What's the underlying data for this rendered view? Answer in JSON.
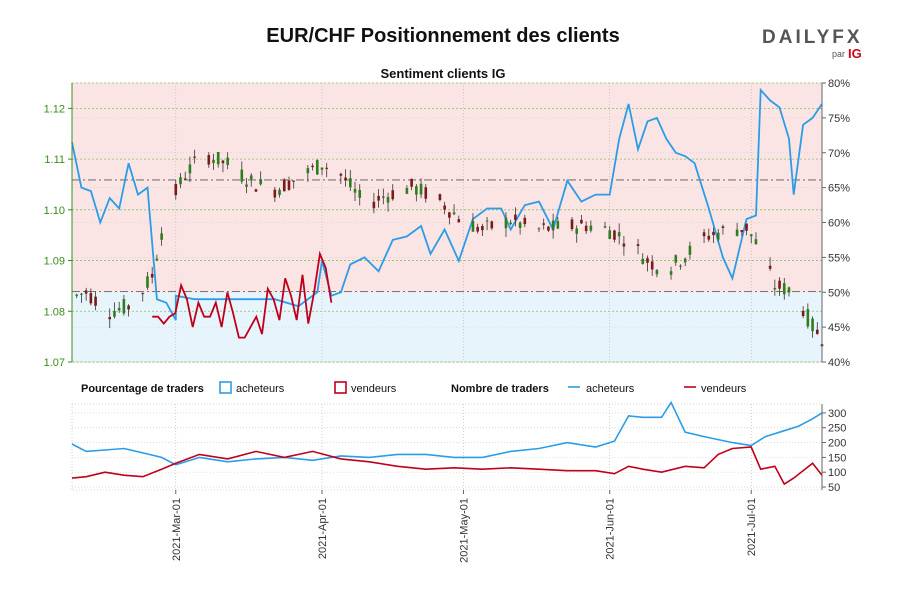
{
  "header": {
    "title": "EUR/CHF Positionnement des clients",
    "logo_text": "DAILYFX",
    "logo_sub": "par",
    "logo_brand": "IG"
  },
  "chart_data": [
    {
      "type": "candlestick",
      "title": "Sentiment clients IG",
      "ylim": [
        1.07,
        1.125
      ],
      "yticks": [
        "1.07",
        "1.08",
        "1.09",
        "1.10",
        "1.11",
        "1.12"
      ],
      "y2lim": [
        40,
        80
      ],
      "y2ticks": [
        "40%",
        "45%",
        "50%",
        "55%",
        "60%",
        "65%",
        "70%",
        "75%",
        "80%"
      ],
      "x_start": "2021-02-07",
      "x_end": "2021-07-16",
      "reference_levels": [
        1.1059,
        1.0839
      ],
      "ohlc_anchors": [
        [
          "2021-02-07",
          1.0827
        ],
        [
          "2021-02-10",
          1.0838
        ],
        [
          "2021-02-15",
          1.08
        ],
        [
          "2021-02-20",
          1.0812
        ],
        [
          "2021-02-24",
          1.087
        ],
        [
          "2021-02-27",
          1.1
        ],
        [
          "2021-03-03",
          1.107
        ],
        [
          "2021-03-07",
          1.111
        ],
        [
          "2021-03-12",
          1.109
        ],
        [
          "2021-03-17",
          1.1055
        ],
        [
          "2021-03-22",
          1.104
        ],
        [
          "2021-03-27",
          1.1063
        ],
        [
          "2021-04-01",
          1.109
        ],
        [
          "2021-04-05",
          1.107
        ],
        [
          "2021-04-10",
          1.101
        ],
        [
          "2021-04-15",
          1.103
        ],
        [
          "2021-04-20",
          1.1045
        ],
        [
          "2021-04-25",
          1.1025
        ],
        [
          "2021-04-30",
          1.0985
        ],
        [
          "2021-05-05",
          1.096
        ],
        [
          "2021-05-11",
          1.098
        ],
        [
          "2021-05-16",
          1.096
        ],
        [
          "2021-05-21",
          1.0965
        ],
        [
          "2021-05-27",
          1.097
        ],
        [
          "2021-06-01",
          1.096
        ],
        [
          "2021-06-05",
          1.094
        ],
        [
          "2021-06-09",
          1.09
        ],
        [
          "2021-06-13",
          1.088
        ],
        [
          "2021-06-17",
          1.091
        ],
        [
          "2021-06-22",
          1.095
        ],
        [
          "2021-06-26",
          1.096
        ],
        [
          "2021-06-30",
          1.0965
        ],
        [
          "2021-07-03",
          1.092
        ],
        [
          "2021-07-06",
          1.085
        ],
        [
          "2021-07-10",
          1.084
        ],
        [
          "2021-07-14",
          1.077
        ],
        [
          "2021-07-16",
          1.0748
        ]
      ],
      "series": [
        {
          "name": "acheteurs",
          "color": "#2b9de8",
          "values": [
            [
              "2021-02-07",
              71.5
            ],
            [
              "2021-02-09",
              65.0
            ],
            [
              "2021-02-11",
              64.5
            ],
            [
              "2021-02-13",
              60.0
            ],
            [
              "2021-02-15",
              63.5
            ],
            [
              "2021-02-17",
              62.0
            ],
            [
              "2021-02-19",
              68.5
            ],
            [
              "2021-02-21",
              64.0
            ],
            [
              "2021-02-23",
              65.0
            ],
            [
              "2021-02-25",
              49.0
            ],
            [
              "2021-02-27",
              48.5
            ],
            [
              "2021-03-01",
              46.0
            ],
            [
              "2021-03-01",
              49.5
            ],
            [
              "2021-03-05",
              49.0
            ],
            [
              "2021-03-10",
              49.0
            ],
            [
              "2021-03-16",
              49.0
            ],
            [
              "2021-03-22",
              49.0
            ],
            [
              "2021-03-27",
              48.0
            ],
            [
              "2021-03-31",
              50.0
            ],
            [
              "2021-04-01",
              54.5
            ],
            [
              "2021-04-03",
              49.5
            ],
            [
              "2021-04-05",
              50.0
            ],
            [
              "2021-04-07",
              54.0
            ],
            [
              "2021-04-10",
              55.0
            ],
            [
              "2021-04-13",
              53.0
            ],
            [
              "2021-04-16",
              57.5
            ],
            [
              "2021-04-19",
              58.0
            ],
            [
              "2021-04-22",
              59.5
            ],
            [
              "2021-04-24",
              55.5
            ],
            [
              "2021-04-27",
              59.0
            ],
            [
              "2021-04-30",
              54.5
            ],
            [
              "2021-05-03",
              60.5
            ],
            [
              "2021-05-06",
              62.0
            ],
            [
              "2021-05-09",
              62.0
            ],
            [
              "2021-05-11",
              59.0
            ],
            [
              "2021-05-14",
              62.5
            ],
            [
              "2021-05-17",
              63.0
            ],
            [
              "2021-05-20",
              59.0
            ],
            [
              "2021-05-23",
              66.0
            ],
            [
              "2021-05-26",
              63.0
            ],
            [
              "2021-05-29",
              64.0
            ],
            [
              "2021-06-01",
              64.0
            ],
            [
              "2021-06-03",
              72.0
            ],
            [
              "2021-06-05",
              77.0
            ],
            [
              "2021-06-07",
              70.5
            ],
            [
              "2021-06-09",
              74.5
            ],
            [
              "2021-06-11",
              75.0
            ],
            [
              "2021-06-13",
              72.0
            ],
            [
              "2021-06-15",
              70.0
            ],
            [
              "2021-06-17",
              69.5
            ],
            [
              "2021-06-19",
              68.5
            ],
            [
              "2021-06-22",
              62.0
            ],
            [
              "2021-06-25",
              55.0
            ],
            [
              "2021-06-27",
              52.0
            ],
            [
              "2021-06-30",
              60.5
            ],
            [
              "2021-07-02",
              61.0
            ],
            [
              "2021-07-03",
              79.0
            ],
            [
              "2021-07-05",
              77.5
            ],
            [
              "2021-07-07",
              76.5
            ],
            [
              "2021-07-09",
              72.0
            ],
            [
              "2021-07-10",
              64.0
            ],
            [
              "2021-07-12",
              74.0
            ],
            [
              "2021-07-14",
              75.0
            ],
            [
              "2021-07-15",
              76.0
            ],
            [
              "2021-07-16",
              77.0
            ]
          ]
        },
        {
          "name": "vendeurs",
          "color": "#c0001a"
        }
      ]
    },
    {
      "type": "line",
      "ylim": [
        40,
        330
      ],
      "yticks": [
        "50",
        "100",
        "150",
        "200",
        "250",
        "300"
      ],
      "x_start": "2021-02-07",
      "x_end": "2021-07-16",
      "xticks": [
        "2021-Mar-01",
        "2021-Apr-01",
        "2021-May-01",
        "2021-Jun-01",
        "2021-Jul-01"
      ],
      "series": [
        {
          "name": "acheteurs",
          "color": "#2b9de8",
          "values": [
            [
              "2021-02-07",
              195
            ],
            [
              "2021-02-10",
              170
            ],
            [
              "2021-02-14",
              175
            ],
            [
              "2021-02-18",
              180
            ],
            [
              "2021-02-22",
              165
            ],
            [
              "2021-02-26",
              150
            ],
            [
              "2021-03-01",
              125
            ],
            [
              "2021-03-06",
              150
            ],
            [
              "2021-03-12",
              135
            ],
            [
              "2021-03-18",
              145
            ],
            [
              "2021-03-24",
              150
            ],
            [
              "2021-03-30",
              140
            ],
            [
              "2021-04-05",
              155
            ],
            [
              "2021-04-11",
              150
            ],
            [
              "2021-04-17",
              160
            ],
            [
              "2021-04-23",
              160
            ],
            [
              "2021-04-29",
              150
            ],
            [
              "2021-05-05",
              150
            ],
            [
              "2021-05-11",
              170
            ],
            [
              "2021-05-17",
              180
            ],
            [
              "2021-05-23",
              200
            ],
            [
              "2021-05-29",
              185
            ],
            [
              "2021-06-02",
              205
            ],
            [
              "2021-06-05",
              290
            ],
            [
              "2021-06-08",
              285
            ],
            [
              "2021-06-12",
              285
            ],
            [
              "2021-06-14",
              335
            ],
            [
              "2021-06-17",
              235
            ],
            [
              "2021-06-21",
              220
            ],
            [
              "2021-06-27",
              200
            ],
            [
              "2021-07-01",
              190
            ],
            [
              "2021-07-04",
              220
            ],
            [
              "2021-07-08",
              240
            ],
            [
              "2021-07-11",
              255
            ],
            [
              "2021-07-14",
              280
            ],
            [
              "2021-07-16",
              300
            ]
          ]
        },
        {
          "name": "vendeurs",
          "color": "#c0001a",
          "values": [
            [
              "2021-02-07",
              80
            ],
            [
              "2021-02-10",
              85
            ],
            [
              "2021-02-14",
              100
            ],
            [
              "2021-02-18",
              90
            ],
            [
              "2021-02-22",
              85
            ],
            [
              "2021-02-26",
              110
            ],
            [
              "2021-03-01",
              130
            ],
            [
              "2021-03-06",
              160
            ],
            [
              "2021-03-12",
              145
            ],
            [
              "2021-03-18",
              170
            ],
            [
              "2021-03-24",
              150
            ],
            [
              "2021-03-30",
              170
            ],
            [
              "2021-04-05",
              145
            ],
            [
              "2021-04-11",
              135
            ],
            [
              "2021-04-17",
              120
            ],
            [
              "2021-04-23",
              110
            ],
            [
              "2021-04-29",
              115
            ],
            [
              "2021-05-05",
              110
            ],
            [
              "2021-05-11",
              115
            ],
            [
              "2021-05-17",
              110
            ],
            [
              "2021-05-23",
              105
            ],
            [
              "2021-05-29",
              105
            ],
            [
              "2021-06-02",
              95
            ],
            [
              "2021-06-05",
              120
            ],
            [
              "2021-06-08",
              110
            ],
            [
              "2021-06-12",
              100
            ],
            [
              "2021-06-17",
              120
            ],
            [
              "2021-06-21",
              115
            ],
            [
              "2021-06-24",
              160
            ],
            [
              "2021-06-27",
              180
            ],
            [
              "2021-07-01",
              185
            ],
            [
              "2021-07-03",
              110
            ],
            [
              "2021-07-06",
              120
            ],
            [
              "2021-07-08",
              60
            ],
            [
              "2021-07-10",
              80
            ],
            [
              "2021-07-12",
              105
            ],
            [
              "2021-07-14",
              130
            ],
            [
              "2021-07-16",
              90
            ]
          ]
        }
      ]
    }
  ],
  "legend": {
    "pct_label": "Pourcentage de traders",
    "count_label": "Nombre de traders",
    "buyers": "acheteurs",
    "sellers": "vendeurs"
  },
  "colors": {
    "buyers": "#2b9de8",
    "sellers": "#c0001a",
    "buyers_zone": "#e8f4fb",
    "sellers_zone": "#fbe4e4",
    "candle_up": "#2e7d1e",
    "candle_down": "#7a1a1a",
    "axis_green": "#3a8c1f"
  }
}
